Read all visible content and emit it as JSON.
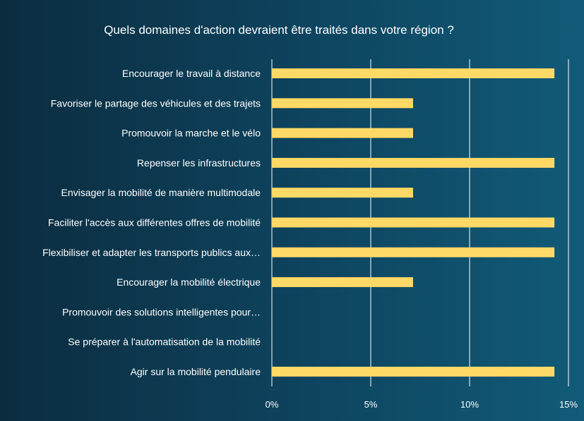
{
  "chart_data": {
    "type": "bar",
    "orientation": "horizontal",
    "title": "Quels domaines d'action devraient être traités dans votre région ?",
    "categories": [
      "Encourager le travail à distance",
      "Favoriser le partage des véhicules et des trajets",
      "Promouvoir la marche et le vélo",
      "Repenser les infrastructures",
      "Envisager la mobilité de manière multimodale",
      "Faciliter l'accès aux différentes offres de mobilité",
      "Flexibiliser et adapter les transports publics aux…",
      "Encourager la mobilité électrique",
      "Promouvoir des solutions intelligentes pour…",
      "Se préparer à l'automatisation de la mobilité",
      "Agir sur la mobilité pendulaire"
    ],
    "values": [
      14.29,
      7.14,
      7.14,
      14.29,
      7.14,
      14.29,
      14.29,
      7.14,
      0,
      0,
      14.29
    ],
    "xlim": [
      0,
      15
    ],
    "xticks": [
      0,
      5,
      10,
      15
    ],
    "xtick_labels": [
      "0%",
      "5%",
      "10%",
      "15%"
    ],
    "xlabel": "",
    "ylabel": "",
    "grid": true,
    "bar_color": "#ffd966",
    "grid_color": "#ffffff",
    "text_color": "#ffffff"
  }
}
